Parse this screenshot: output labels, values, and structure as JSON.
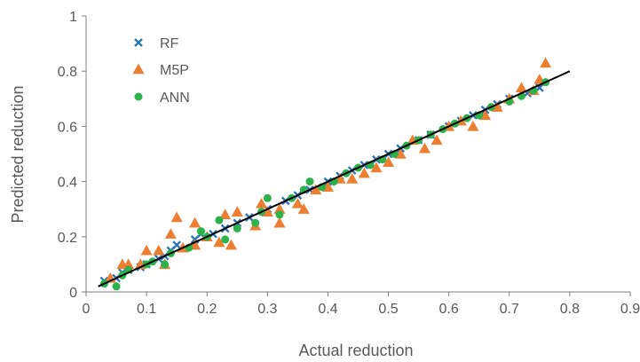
{
  "chart_data": {
    "type": "scatter",
    "xlabel": "Actual reduction",
    "ylabel": "Predicted reduction",
    "xlim": [
      0,
      0.9
    ],
    "ylim": [
      0,
      1
    ],
    "x_ticks": [
      "0",
      "0.1",
      "0.2",
      "0.3",
      "0.4",
      "0.5",
      "0.6",
      "0.7",
      "0.8",
      "0.9"
    ],
    "y_ticks": [
      "0",
      "0.2",
      "0.4",
      "0.6",
      "0.8",
      "1"
    ],
    "grid": false,
    "legend_position": "top-left",
    "reference_line": {
      "x": [
        0.02,
        0.8
      ],
      "y": [
        0.02,
        0.8
      ],
      "color": "#000000"
    },
    "series": [
      {
        "name": "RF",
        "marker": "x",
        "color": "#2E75B6",
        "points": [
          [
            0.03,
            0.04
          ],
          [
            0.05,
            0.05
          ],
          [
            0.06,
            0.07
          ],
          [
            0.07,
            0.08
          ],
          [
            0.09,
            0.09
          ],
          [
            0.1,
            0.1
          ],
          [
            0.12,
            0.12
          ],
          [
            0.13,
            0.13
          ],
          [
            0.14,
            0.15
          ],
          [
            0.15,
            0.17
          ],
          [
            0.18,
            0.19
          ],
          [
            0.19,
            0.21
          ],
          [
            0.21,
            0.21
          ],
          [
            0.23,
            0.23
          ],
          [
            0.25,
            0.25
          ],
          [
            0.27,
            0.27
          ],
          [
            0.3,
            0.3
          ],
          [
            0.33,
            0.33
          ],
          [
            0.35,
            0.35
          ],
          [
            0.37,
            0.37
          ],
          [
            0.4,
            0.4
          ],
          [
            0.42,
            0.42
          ],
          [
            0.44,
            0.44
          ],
          [
            0.46,
            0.46
          ],
          [
            0.48,
            0.48
          ],
          [
            0.5,
            0.5
          ],
          [
            0.52,
            0.52
          ],
          [
            0.55,
            0.55
          ],
          [
            0.57,
            0.57
          ],
          [
            0.6,
            0.6
          ],
          [
            0.62,
            0.62
          ],
          [
            0.64,
            0.64
          ],
          [
            0.66,
            0.66
          ],
          [
            0.68,
            0.68
          ],
          [
            0.7,
            0.7
          ],
          [
            0.73,
            0.72
          ],
          [
            0.75,
            0.74
          ]
        ]
      },
      {
        "name": "M5P",
        "marker": "triangle",
        "color": "#ED7D31",
        "points": [
          [
            0.04,
            0.05
          ],
          [
            0.06,
            0.1
          ],
          [
            0.07,
            0.1
          ],
          [
            0.09,
            0.1
          ],
          [
            0.1,
            0.15
          ],
          [
            0.12,
            0.15
          ],
          [
            0.13,
            0.1
          ],
          [
            0.14,
            0.21
          ],
          [
            0.15,
            0.27
          ],
          [
            0.16,
            0.16
          ],
          [
            0.18,
            0.17
          ],
          [
            0.18,
            0.25
          ],
          [
            0.2,
            0.2
          ],
          [
            0.22,
            0.18
          ],
          [
            0.23,
            0.28
          ],
          [
            0.24,
            0.17
          ],
          [
            0.25,
            0.29
          ],
          [
            0.28,
            0.24
          ],
          [
            0.29,
            0.32
          ],
          [
            0.3,
            0.29
          ],
          [
            0.32,
            0.25
          ],
          [
            0.32,
            0.3
          ],
          [
            0.35,
            0.32
          ],
          [
            0.36,
            0.3
          ],
          [
            0.38,
            0.37
          ],
          [
            0.4,
            0.38
          ],
          [
            0.42,
            0.41
          ],
          [
            0.44,
            0.41
          ],
          [
            0.46,
            0.43
          ],
          [
            0.48,
            0.45
          ],
          [
            0.5,
            0.47
          ],
          [
            0.52,
            0.5
          ],
          [
            0.54,
            0.55
          ],
          [
            0.56,
            0.52
          ],
          [
            0.58,
            0.55
          ],
          [
            0.6,
            0.6
          ],
          [
            0.62,
            0.62
          ],
          [
            0.64,
            0.6
          ],
          [
            0.66,
            0.64
          ],
          [
            0.68,
            0.67
          ],
          [
            0.7,
            0.7
          ],
          [
            0.72,
            0.74
          ],
          [
            0.74,
            0.73
          ],
          [
            0.75,
            0.77
          ],
          [
            0.76,
            0.83
          ]
        ]
      },
      {
        "name": "ANN",
        "marker": "circle",
        "color": "#2CB24B",
        "points": [
          [
            0.03,
            0.03
          ],
          [
            0.05,
            0.02
          ],
          [
            0.06,
            0.06
          ],
          [
            0.07,
            0.08
          ],
          [
            0.1,
            0.1
          ],
          [
            0.11,
            0.11
          ],
          [
            0.13,
            0.1
          ],
          [
            0.14,
            0.14
          ],
          [
            0.17,
            0.16
          ],
          [
            0.19,
            0.22
          ],
          [
            0.2,
            0.2
          ],
          [
            0.22,
            0.26
          ],
          [
            0.23,
            0.19
          ],
          [
            0.25,
            0.23
          ],
          [
            0.28,
            0.25
          ],
          [
            0.29,
            0.29
          ],
          [
            0.3,
            0.34
          ],
          [
            0.32,
            0.28
          ],
          [
            0.34,
            0.34
          ],
          [
            0.36,
            0.37
          ],
          [
            0.37,
            0.4
          ],
          [
            0.39,
            0.38
          ],
          [
            0.41,
            0.4
          ],
          [
            0.43,
            0.43
          ],
          [
            0.45,
            0.45
          ],
          [
            0.47,
            0.46
          ],
          [
            0.49,
            0.48
          ],
          [
            0.51,
            0.5
          ],
          [
            0.53,
            0.53
          ],
          [
            0.55,
            0.55
          ],
          [
            0.57,
            0.57
          ],
          [
            0.59,
            0.59
          ],
          [
            0.61,
            0.61
          ],
          [
            0.63,
            0.63
          ],
          [
            0.65,
            0.64
          ],
          [
            0.67,
            0.67
          ],
          [
            0.7,
            0.69
          ],
          [
            0.72,
            0.71
          ],
          [
            0.74,
            0.73
          ],
          [
            0.76,
            0.76
          ]
        ]
      }
    ]
  }
}
